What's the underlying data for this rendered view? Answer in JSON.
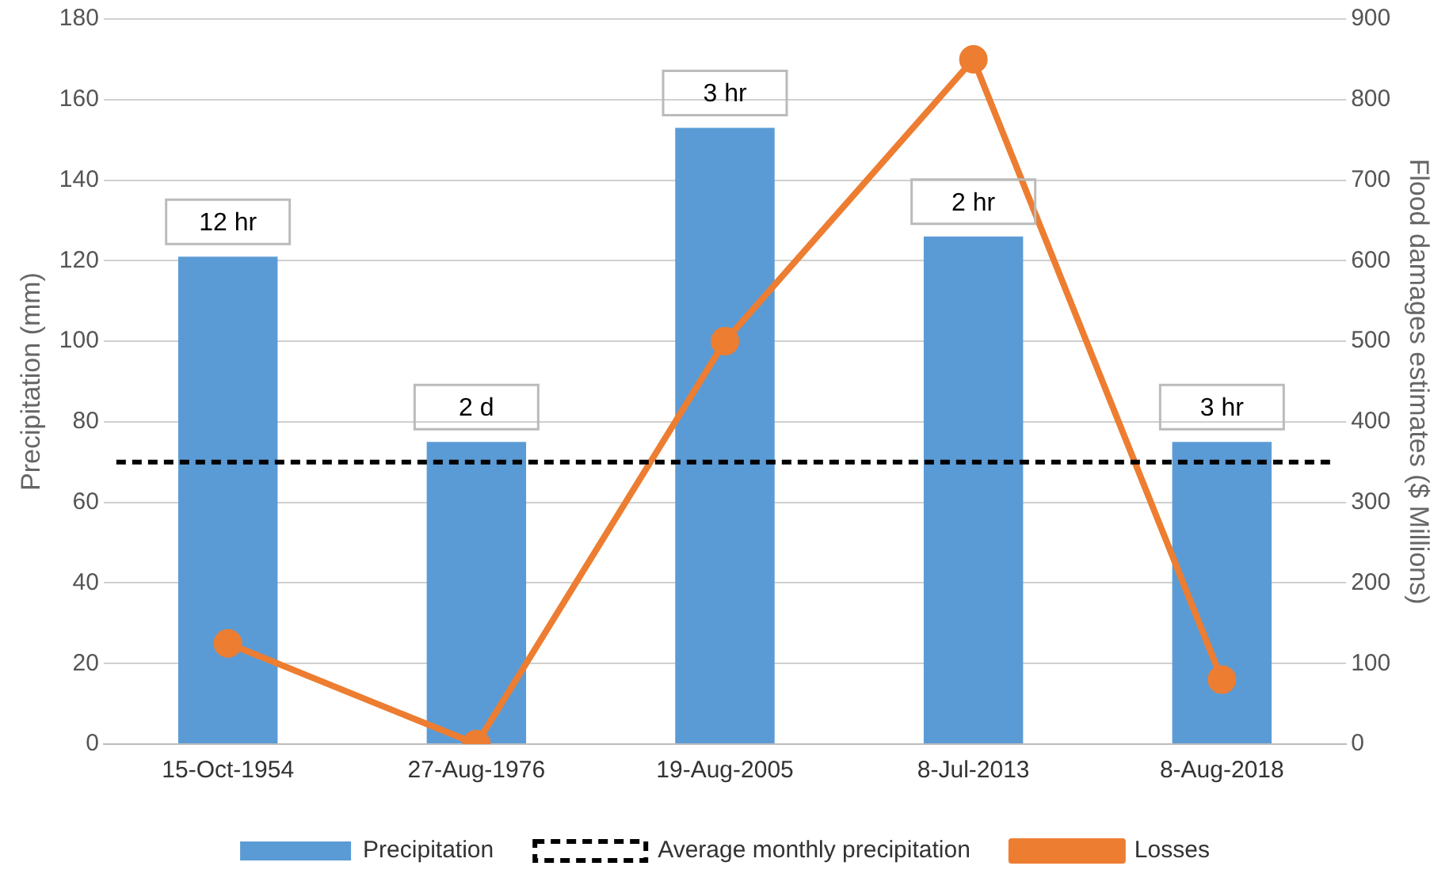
{
  "chart_data": {
    "type": "bar",
    "ylabel": "Precipitation (mm)",
    "y2label": "Flood damages estimates ($ Millions)",
    "categories": [
      "15-Oct-1954",
      "27-Aug-1976",
      "19-Aug-2005",
      "8-Jul-2013",
      "8-Aug-2018"
    ],
    "series": [
      {
        "name": "Precipitation",
        "color": "#5b9bd5",
        "values": [
          121,
          75,
          153,
          126,
          75
        ]
      },
      {
        "name": "Losses",
        "type": "line",
        "axis": "y2",
        "color": "#ed7d31",
        "marker": "circle",
        "values": [
          125,
          0,
          500,
          850,
          80
        ]
      }
    ],
    "ylim": [
      0,
      180
    ],
    "yticks": [
      0,
      20,
      40,
      60,
      80,
      100,
      120,
      140,
      160,
      180
    ],
    "y2lim": [
      0,
      900
    ],
    "y2ticks": [
      0,
      100,
      200,
      300,
      400,
      500,
      600,
      700,
      800,
      900
    ],
    "ref_lines": [
      {
        "axis": "y",
        "value": 70,
        "label": "Average monthly precipitation",
        "color": "#000000",
        "line_style": "dashed"
      }
    ],
    "annotations": [
      {
        "text": "12 hr",
        "x": "15-Oct-1954",
        "y": 121
      },
      {
        "text": "2 d",
        "x": "27-Aug-1976",
        "y": 75
      },
      {
        "text": "3 hr",
        "x": "19-Aug-2005",
        "y": 153
      },
      {
        "text": "2 hr",
        "x": "8-Jul-2013",
        "y": 126
      },
      {
        "text": "3 hr",
        "x": "8-Aug-2018",
        "y": 75
      }
    ],
    "grid": "y",
    "legend": "bottom"
  }
}
